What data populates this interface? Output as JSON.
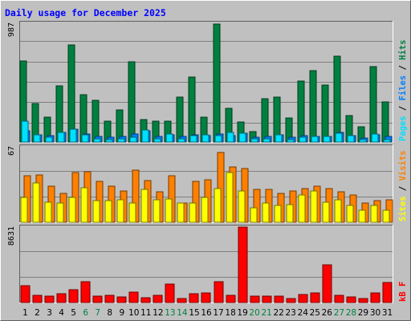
{
  "chart_data": {
    "type": "bar",
    "title": "Daily usage for December 2025",
    "categories": [
      "1",
      "2",
      "3",
      "4",
      "5",
      "6",
      "7",
      "8",
      "9",
      "10",
      "11",
      "12",
      "13",
      "14",
      "15",
      "16",
      "17",
      "18",
      "19",
      "20",
      "21",
      "22",
      "23",
      "24",
      "25",
      "26",
      "27",
      "28",
      "29",
      "30",
      "31"
    ],
    "weekend_days": [
      "6",
      "7",
      "13",
      "14",
      "20",
      "21",
      "27",
      "28"
    ],
    "grid": true,
    "panels": [
      {
        "id": "hits-pages-files",
        "ymax_label": "987",
        "ylim": [
          0,
          987
        ],
        "legend": [
          "Pages",
          "Files",
          "Hits"
        ],
        "series": [
          {
            "name": "Hits",
            "color": "#008040",
            "values": [
              676,
              323,
              207,
              466,
              810,
              395,
              346,
              172,
              264,
              664,
              189,
              172,
              172,
              375,
              540,
              210,
              980,
              281,
              166,
              90,
              358,
              376,
              198,
              504,
              594,
              472,
              714,
              221,
              126,
              629,
              336
            ]
          },
          {
            "name": "Files",
            "color": "#0080ff",
            "values": [
              91,
              59,
              52,
              80,
              110,
              64,
              50,
              38,
              46,
              68,
              95,
              44,
              62,
              47,
              59,
              56,
              66,
              52,
              73,
              42,
              47,
              57,
              43,
              52,
              45,
              46,
              79,
              52,
              34,
              58,
              45
            ]
          },
          {
            "name": "Pages",
            "color": "#00e0ff",
            "values": [
              172,
              63,
              42,
              82,
              106,
              57,
              25,
              22,
              25,
              39,
              97,
              27,
              67,
              25,
              51,
              59,
              53,
              82,
              76,
              27,
              25,
              62,
              22,
              42,
              46,
              46,
              76,
              53,
              23,
              69,
              23
            ]
          }
        ]
      },
      {
        "id": "visits-sites",
        "ymax_label": "67",
        "ylim": [
          0,
          67
        ],
        "legend": [
          "Sites",
          "Visits"
        ],
        "series": [
          {
            "name": "Visits",
            "color": "#ff8000",
            "values": [
              41,
              42,
              32,
              26,
              44,
              45,
              36,
              32,
              28,
              46,
              37,
              27,
              41,
              17,
              36,
              38,
              62,
              49,
              48,
              29,
              29,
              26,
              28,
              30,
              32,
              30,
              27,
              24,
              17,
              19,
              20
            ]
          },
          {
            "name": "Sites",
            "color": "#ffff00",
            "values": [
              22,
              35,
              18,
              17,
              22,
              31,
              19,
              19,
              20,
              17,
              29,
              20,
              21,
              17,
              17,
              22,
              30,
              44,
              28,
              13,
              17,
              15,
              16,
              24,
              28,
              18,
              20,
              15,
              11,
              15,
              11
            ]
          }
        ]
      },
      {
        "id": "kbytes",
        "ymax_label": "8631",
        "ylim": [
          0,
          8631
        ],
        "legend": [
          "kB F"
        ],
        "series": [
          {
            "name": "kB F",
            "color": "#ff0000",
            "values": [
              1900,
              790,
              740,
              990,
              1470,
              2390,
              730,
              790,
              630,
              1170,
              560,
              790,
              2080,
              460,
              980,
              1110,
              2390,
              790,
              8631,
              750,
              730,
              740,
              430,
              890,
              1090,
              4280,
              830,
              650,
              480,
              1100,
              2330
            ]
          }
        ]
      }
    ]
  }
}
